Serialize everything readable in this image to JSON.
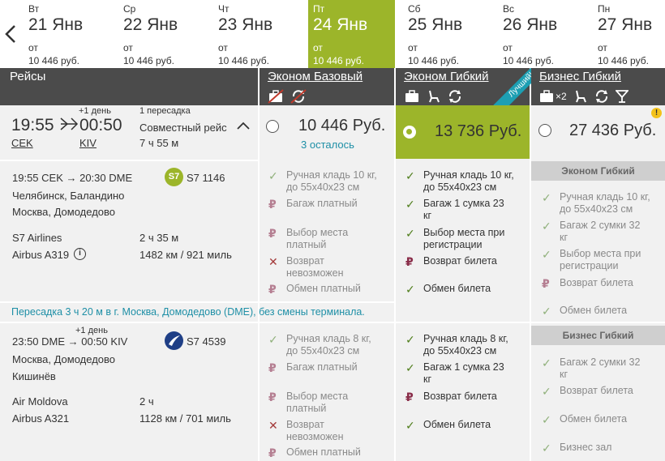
{
  "datebar": {
    "days": [
      {
        "weekday": "Вт",
        "date": "21 Янв",
        "from": "от",
        "price": "10 446 руб."
      },
      {
        "weekday": "Ср",
        "date": "22 Янв",
        "from": "от",
        "price": "10 446 руб."
      },
      {
        "weekday": "Чт",
        "date": "23 Янв",
        "from": "от",
        "price": "10 446 руб."
      },
      {
        "weekday": "Пт",
        "date": "24 Янв",
        "from": "от",
        "price": "10 446 руб."
      },
      {
        "weekday": "Сб",
        "date": "25 Янв",
        "from": "от",
        "price": "10 446 руб."
      },
      {
        "weekday": "Вс",
        "date": "26 Янв",
        "from": "от",
        "price": "10 446 руб."
      },
      {
        "weekday": "Пн",
        "date": "27 Янв",
        "from": "от",
        "price": "10 446 руб."
      }
    ],
    "active_index": 3,
    "accent": "#9cb52a"
  },
  "header": {
    "flights": "Рейсы",
    "economy_basic": "Эконом Базовый",
    "economy_flex": "Эконом Гибкий",
    "best_badge": "Лучший!",
    "business_flex": "Бизнес Гибкий",
    "business_bag_count": "×2"
  },
  "summary": {
    "depart_time": "19:55",
    "arrive_time": "00:50",
    "next_day": "+1 день",
    "depart_code": "CEK",
    "arrive_code": "KIV",
    "stops": "1 пересадка",
    "operator": "Совместный рейс",
    "duration": "7 ч 55 м"
  },
  "prices": {
    "basic": {
      "value": "10 446 Руб.",
      "remaining": "3 осталось"
    },
    "flex": {
      "value": "13 736 Руб."
    },
    "business": {
      "value": "27 436 Руб."
    }
  },
  "segment1": {
    "route": "19:55 CEK → 20:30 DME",
    "flight": "S7 1146",
    "logo": "S7",
    "from_city": "Челябинск, Баландино",
    "to_city": "Москва, Домодедово",
    "airline": "S7 Airlines",
    "duration": "2 ч 35 м",
    "aircraft": "Airbus A319",
    "distance": "1482 км / 921 миль"
  },
  "transfer": "Пересадка 3 ч 20 м в г. Москва, Домодедово (DME), без смены терминала.",
  "segment2": {
    "route": "23:50 DME → 00:50 KIV",
    "next_day": "+1 день",
    "flight": "S7 4539",
    "from_city": "Москва, Домодедово",
    "to_city": "Кишинёв",
    "airline": "Air Moldova",
    "duration": "2 ч",
    "aircraft": "Airbus A321",
    "distance": "1128 км / 701 миль"
  },
  "basic_features_1": [
    {
      "icon": "check",
      "text": "Ручная кладь 10 кг,\nдо 55x40x23 см"
    },
    {
      "icon": "rub",
      "text": "Багаж платный"
    },
    {
      "icon": "rub",
      "text": "Выбор места\nплатный"
    },
    {
      "icon": "cross",
      "text": "Возврат\nневозможен"
    },
    {
      "icon": "rub",
      "text": "Обмен платный"
    }
  ],
  "flex_features_1": [
    {
      "icon": "check",
      "text": "Ручная кладь 10 кг,\nдо 55x40x23 см"
    },
    {
      "icon": "check",
      "text": "Багаж 1 сумка 23\nкг"
    },
    {
      "icon": "check",
      "text": "Выбор места при\nрегистрации"
    },
    {
      "icon": "rub",
      "text": "Возврат билета"
    },
    {
      "icon": "check",
      "text": "Обмен билета"
    }
  ],
  "business_sub1": "Эконом Гибкий",
  "business_features_1": [
    {
      "icon": "check",
      "text": "Ручная кладь 10 кг,\nдо 55x40x23 см"
    },
    {
      "icon": "check",
      "text": "Багаж 2 сумки 32\nкг"
    },
    {
      "icon": "check",
      "text": "Выбор места при\nрегистрации"
    },
    {
      "icon": "rub",
      "text": "Возврат билета"
    },
    {
      "icon": "check",
      "text": "Обмен билета"
    }
  ],
  "basic_features_2": [
    {
      "icon": "check",
      "text": "Ручная кладь 8 кг,\nдо 55x40x23 см"
    },
    {
      "icon": "rub",
      "text": "Багаж платный"
    },
    {
      "icon": "rub",
      "text": "Выбор места\nплатный"
    },
    {
      "icon": "cross",
      "text": "Возврат\nневозможен"
    },
    {
      "icon": "rub",
      "text": "Обмен платный"
    }
  ],
  "flex_features_2": [
    {
      "icon": "check",
      "text": "Ручная кладь 8 кг,\nдо 55x40x23 см"
    },
    {
      "icon": "check",
      "text": "Багаж 1 сумка 23\nкг"
    },
    {
      "icon": "rub",
      "text": "Возврат билета"
    },
    {
      "icon": "check",
      "text": "Обмен билета"
    }
  ],
  "business_sub2": "Бизнес Гибкий",
  "business_features_2": [
    {
      "icon": "check",
      "text": "Багаж 2 сумки 32\nкг"
    },
    {
      "icon": "check",
      "text": "Возврат билета"
    },
    {
      "icon": "check",
      "text": "Обмен билета"
    },
    {
      "icon": "check",
      "text": "Бизнес зал"
    }
  ]
}
